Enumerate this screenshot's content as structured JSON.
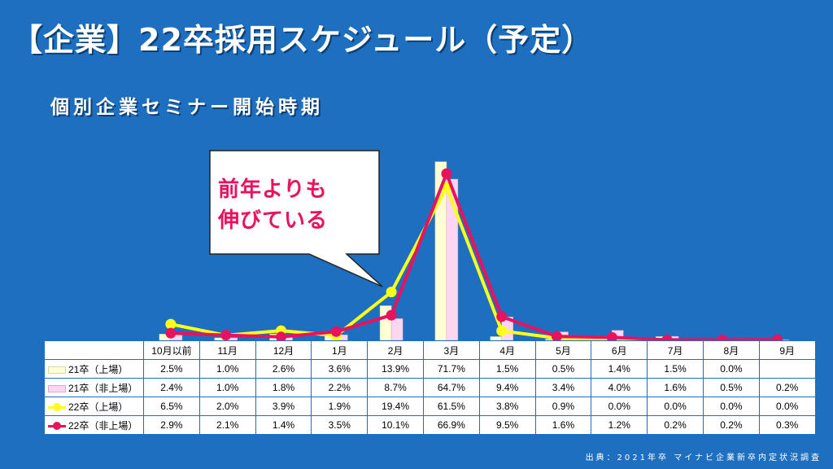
{
  "title": "【企業】22卒採用スケジュール（予定）",
  "subtitle": "個別企業セミナー開始時期",
  "callout": [
    "前年よりも",
    "伸びている"
  ],
  "source": "出典：2021年卒 マイナビ企業新卒内定状況調査",
  "colors": {
    "background": "#1e6fc0",
    "bar_21_listed": "#ffffd6",
    "bar_21_unlisted": "#ffd6f2",
    "line_22_listed": "#ffff1a",
    "line_22_unlisted": "#e8125f"
  },
  "chart_data": {
    "type": "bar",
    "categories": [
      "10月以前",
      "11月",
      "12月",
      "1月",
      "2月",
      "3月",
      "4月",
      "5月",
      "6月",
      "7月",
      "8月",
      "9月"
    ],
    "ylim": [
      0,
      100
    ],
    "series": [
      {
        "name": "21卒（上場）",
        "kind": "bar",
        "values": [
          2.5,
          1.0,
          2.6,
          3.6,
          13.9,
          71.7,
          1.5,
          0.5,
          1.4,
          1.5,
          0.0,
          null
        ],
        "labels": [
          "2.5%",
          "1.0%",
          "2.6%",
          "3.6%",
          "13.9%",
          "71.7%",
          "1.5%",
          "0.5%",
          "1.4%",
          "1.5%",
          "0.0%",
          ""
        ]
      },
      {
        "name": "21卒（非上場）",
        "kind": "bar",
        "values": [
          2.4,
          1.0,
          1.8,
          2.2,
          8.7,
          64.7,
          9.4,
          3.4,
          4.0,
          1.6,
          0.5,
          0.2
        ],
        "labels": [
          "2.4%",
          "1.0%",
          "1.8%",
          "2.2%",
          "8.7%",
          "64.7%",
          "9.4%",
          "3.4%",
          "4.0%",
          "1.6%",
          "0.5%",
          "0.2%"
        ]
      },
      {
        "name": "22卒（上場）",
        "kind": "line",
        "values": [
          6.5,
          2.0,
          3.9,
          1.9,
          19.4,
          61.5,
          3.8,
          0.9,
          0.0,
          0.0,
          0.0,
          0.0
        ],
        "labels": [
          "6.5%",
          "2.0%",
          "3.9%",
          "1.9%",
          "19.4%",
          "61.5%",
          "3.8%",
          "0.9%",
          "0.0%",
          "0.0%",
          "0.0%",
          "0.0%"
        ]
      },
      {
        "name": "22卒（非上場）",
        "kind": "line",
        "values": [
          2.9,
          2.1,
          1.4,
          3.5,
          10.1,
          66.9,
          9.5,
          1.6,
          1.2,
          0.2,
          0.2,
          0.3
        ],
        "labels": [
          "2.9%",
          "2.1%",
          "1.4%",
          "3.5%",
          "10.1%",
          "66.9%",
          "9.5%",
          "1.6%",
          "1.2%",
          "0.2%",
          "0.2%",
          "0.3%"
        ]
      }
    ]
  }
}
